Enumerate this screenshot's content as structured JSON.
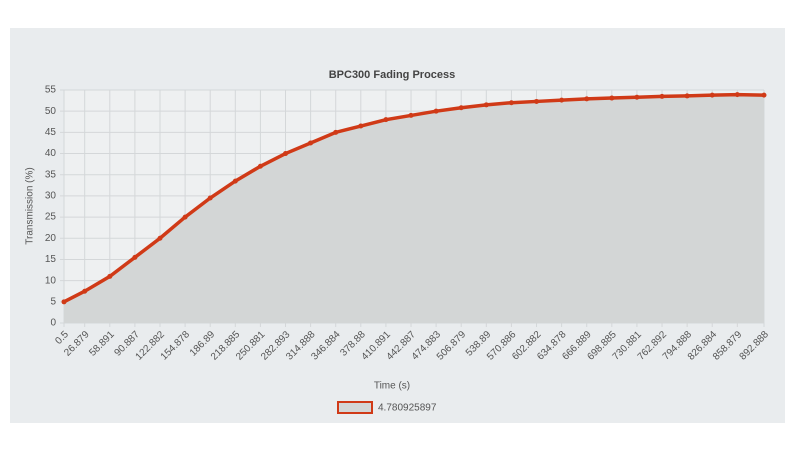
{
  "chart_data": {
    "type": "line",
    "title": "BPC300 Fading Process",
    "xlabel": "Time (s)",
    "ylabel": "Transmission (%)",
    "x": [
      0.5,
      26.879,
      58.891,
      90.887,
      122.882,
      154.878,
      186.89,
      218.885,
      250.881,
      282.893,
      314.888,
      346.884,
      378.88,
      410.891,
      442.887,
      474.883,
      506.879,
      538.89,
      570.886,
      602.882,
      634.878,
      666.889,
      698.885,
      730.881,
      762.892,
      794.888,
      826.884,
      858.879,
      892.888
    ],
    "series": [
      {
        "name": "4.780925897",
        "color": "#d03a17",
        "fill": "#d3d6d6",
        "values": [
          5,
          7.5,
          11,
          15.5,
          20,
          25,
          29.5,
          33.5,
          37,
          40,
          42.5,
          45,
          46.5,
          48,
          49,
          50,
          50.8,
          51.5,
          52,
          52.3,
          52.6,
          52.9,
          53.1,
          53.3,
          53.5,
          53.6,
          53.8,
          53.9,
          53.8
        ]
      }
    ],
    "xlim": [
      0.5,
      892.888
    ],
    "xticks": [
      0.5,
      26.879,
      58.891,
      90.887,
      122.882,
      154.878,
      186.89,
      218.885,
      250.881,
      282.893,
      314.888,
      346.884,
      378.88,
      410.891,
      442.887,
      474.883,
      506.879,
      538.89,
      570.886,
      602.882,
      634.878,
      666.889,
      698.885,
      730.881,
      762.892,
      794.888,
      826.884,
      858.879,
      892.888
    ],
    "ylim": [
      0,
      55
    ],
    "yticks": [
      0,
      5,
      10,
      15,
      20,
      25,
      30,
      35,
      40,
      45,
      50,
      55
    ],
    "grid": true,
    "legend": "bottom"
  }
}
